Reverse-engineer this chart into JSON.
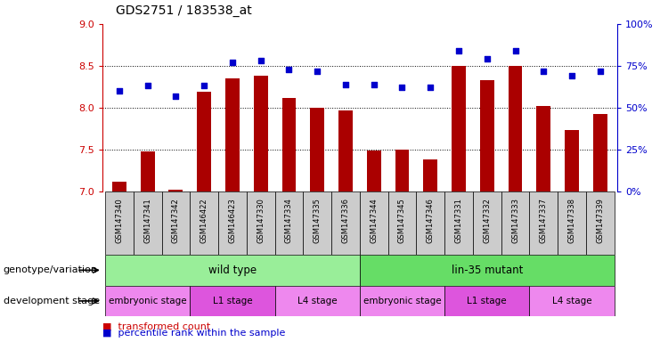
{
  "title": "GDS2751 / 183538_at",
  "samples": [
    "GSM147340",
    "GSM147341",
    "GSM147342",
    "GSM146422",
    "GSM146423",
    "GSM147330",
    "GSM147334",
    "GSM147335",
    "GSM147336",
    "GSM147344",
    "GSM147345",
    "GSM147346",
    "GSM147331",
    "GSM147332",
    "GSM147333",
    "GSM147337",
    "GSM147338",
    "GSM147339"
  ],
  "transformed_count": [
    7.12,
    7.48,
    7.02,
    8.19,
    8.35,
    8.38,
    8.12,
    8.0,
    7.97,
    7.49,
    7.5,
    7.38,
    8.5,
    8.33,
    8.5,
    8.02,
    7.73,
    7.93
  ],
  "percentile_rank": [
    60,
    63,
    57,
    63,
    77,
    78,
    73,
    72,
    64,
    64,
    62,
    62,
    84,
    79,
    84,
    72,
    69,
    72
  ],
  "ylim_left": [
    7.0,
    9.0
  ],
  "ylim_right": [
    0,
    100
  ],
  "yticks_left": [
    7.0,
    7.5,
    8.0,
    8.5,
    9.0
  ],
  "yticks_right": [
    0,
    25,
    50,
    75,
    100
  ],
  "bar_color": "#aa0000",
  "dot_color": "#0000cc",
  "genotype_groups": [
    {
      "label": "wild type",
      "start": 0,
      "end": 9,
      "color": "#99ee99"
    },
    {
      "label": "lin-35 mutant",
      "start": 9,
      "end": 18,
      "color": "#66dd66"
    }
  ],
  "stage_groups": [
    {
      "label": "embryonic stage",
      "start": 0,
      "end": 3,
      "color": "#ee88ee"
    },
    {
      "label": "L1 stage",
      "start": 3,
      "end": 6,
      "color": "#dd55dd"
    },
    {
      "label": "L4 stage",
      "start": 6,
      "end": 9,
      "color": "#ee88ee"
    },
    {
      "label": "embryonic stage",
      "start": 9,
      "end": 12,
      "color": "#ee88ee"
    },
    {
      "label": "L1 stage",
      "start": 12,
      "end": 15,
      "color": "#dd55dd"
    },
    {
      "label": "L4 stage",
      "start": 15,
      "end": 18,
      "color": "#ee88ee"
    }
  ],
  "legend_items": [
    {
      "label": "transformed count",
      "color": "#cc0000"
    },
    {
      "label": "percentile rank within the sample",
      "color": "#0000cc"
    }
  ],
  "genotype_label": "genotype/variation",
  "stage_label": "development stage",
  "background_color": "#ffffff",
  "dotted_grid_color": "#000000",
  "axis_color_left": "#cc0000",
  "axis_color_right": "#0000cc",
  "xticklabel_bg": "#cccccc",
  "xticklabel_fontsize": 6.0,
  "bar_width": 0.5
}
